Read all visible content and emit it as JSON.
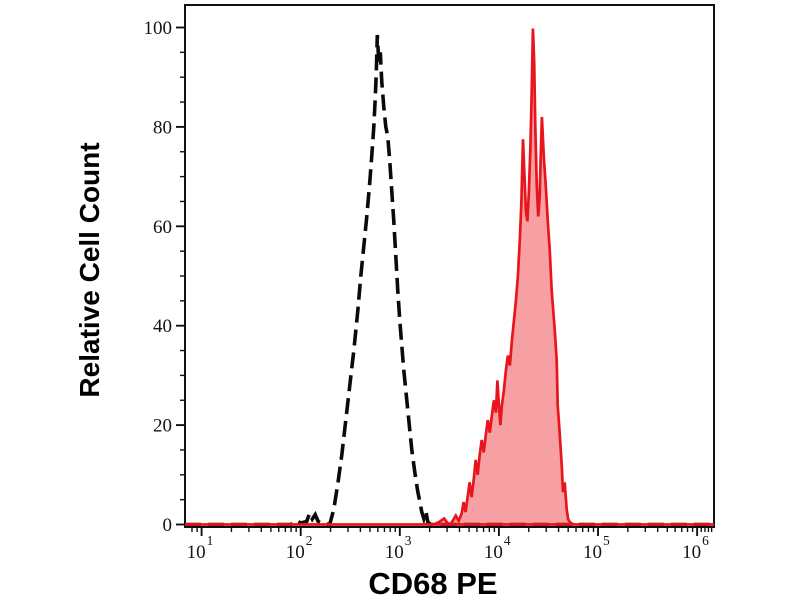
{
  "figure": {
    "kind": "flow-cytometry-histogram",
    "background": "#ffffff",
    "frame_color": "#111111"
  },
  "chart_data": {
    "type": "area",
    "title": "",
    "xlabel": "CD68 PE",
    "ylabel": "Relative Cell Count",
    "x_scale": "log10",
    "x_range": [
      6.8,
      1480000
    ],
    "y_range": [
      0,
      104.5
    ],
    "grid": false,
    "legend": null,
    "x_ticks": [
      {
        "base": "10",
        "exp": "1",
        "value": 10
      },
      {
        "base": "10",
        "exp": "2",
        "value": 100
      },
      {
        "base": "10",
        "exp": "3",
        "value": 1000
      },
      {
        "base": "10",
        "exp": "4",
        "value": 10000
      },
      {
        "base": "10",
        "exp": "5",
        "value": 100000
      },
      {
        "base": "10",
        "exp": "6",
        "value": 1000000
      }
    ],
    "x_minor_ticks": [
      8,
      9,
      20,
      30,
      40,
      50,
      60,
      70,
      80,
      90,
      200,
      300,
      400,
      500,
      600,
      700,
      800,
      900,
      2000,
      3000,
      4000,
      5000,
      6000,
      7000,
      8000,
      9000,
      20000,
      30000,
      40000,
      50000,
      60000,
      70000,
      80000,
      90000,
      200000,
      300000,
      400000,
      500000,
      600000,
      700000,
      800000,
      900000,
      1100000,
      1200000,
      1300000,
      1400000
    ],
    "y_ticks": [
      {
        "label": "0",
        "value": 0
      },
      {
        "label": "20",
        "value": 20
      },
      {
        "label": "40",
        "value": 40
      },
      {
        "label": "60",
        "value": 60
      },
      {
        "label": "80",
        "value": 80
      },
      {
        "label": "100",
        "value": 100
      }
    ],
    "y_minor_ticks": [
      5,
      10,
      15,
      25,
      30,
      35,
      45,
      50,
      55,
      65,
      70,
      75,
      85,
      90,
      95
    ],
    "series": [
      {
        "name": "isotype-control",
        "style": "dashed",
        "color": "#0a0a0a",
        "fill": "none",
        "stroke_width": 3.6,
        "dash": [
          16,
          7
        ],
        "peak": {
          "x": 593,
          "y": 98.5
        },
        "points": [
          [
            6.8,
            0
          ],
          [
            80,
            0
          ],
          [
            90,
            0.8
          ],
          [
            100,
            0.3
          ],
          [
            115,
            0.6
          ],
          [
            123,
            2.3
          ],
          [
            131,
            1.1
          ],
          [
            140,
            2
          ],
          [
            150,
            0.6
          ],
          [
            165,
            0.2
          ],
          [
            196,
            0
          ],
          [
            215,
            3
          ],
          [
            236,
            8
          ],
          [
            260,
            14
          ],
          [
            285,
            21
          ],
          [
            313,
            28
          ],
          [
            343,
            35
          ],
          [
            377,
            43
          ],
          [
            404,
            50
          ],
          [
            433,
            56
          ],
          [
            464,
            62
          ],
          [
            498,
            69
          ],
          [
            521,
            74
          ],
          [
            546,
            80
          ],
          [
            566,
            86
          ],
          [
            579,
            91
          ],
          [
            593,
            98.5
          ],
          [
            614,
            93
          ],
          [
            636,
            95
          ],
          [
            658,
            89
          ],
          [
            689,
            84
          ],
          [
            722,
            80
          ],
          [
            757,
            78
          ],
          [
            793,
            73
          ],
          [
            830,
            67
          ],
          [
            870,
            61
          ],
          [
            912,
            54
          ],
          [
            955,
            47
          ],
          [
            1000,
            41
          ],
          [
            1048,
            36
          ],
          [
            1097,
            31
          ],
          [
            1150,
            27
          ],
          [
            1205,
            23
          ],
          [
            1262,
            19
          ],
          [
            1322,
            15
          ],
          [
            1385,
            12
          ],
          [
            1452,
            9
          ],
          [
            1521,
            6.5
          ],
          [
            1593,
            4.5
          ],
          [
            1668,
            2.5
          ],
          [
            1747,
            1.2
          ],
          [
            1831,
            2.8
          ],
          [
            1918,
            0.5
          ],
          [
            2056,
            0
          ],
          [
            1480000,
            0
          ]
        ]
      },
      {
        "name": "cd68-pe",
        "style": "solid",
        "color": "#e8151d",
        "fill": "#ed1c24",
        "fill_opacity": 0.42,
        "stroke_width": 2.7,
        "dash": null,
        "peak": {
          "x": 22030,
          "y": 99.8
        },
        "points": [
          [
            6.8,
            0
          ],
          [
            2200,
            0
          ],
          [
            2500,
            0.5
          ],
          [
            2800,
            1.2
          ],
          [
            3000,
            0.4
          ],
          [
            3210,
            0
          ],
          [
            3430,
            0.8
          ],
          [
            3670,
            1.8
          ],
          [
            3930,
            0.7
          ],
          [
            4200,
            2.2
          ],
          [
            4400,
            4.5
          ],
          [
            4600,
            2.5
          ],
          [
            4830,
            5.5
          ],
          [
            5060,
            8.5
          ],
          [
            5300,
            5.5
          ],
          [
            5560,
            9
          ],
          [
            5830,
            13
          ],
          [
            6110,
            10
          ],
          [
            6400,
            14
          ],
          [
            6710,
            17
          ],
          [
            7030,
            14.5
          ],
          [
            7370,
            18
          ],
          [
            7730,
            21
          ],
          [
            8100,
            18.5
          ],
          [
            8490,
            22
          ],
          [
            8900,
            25
          ],
          [
            9330,
            22.5
          ],
          [
            9660,
            29
          ],
          [
            10000,
            24
          ],
          [
            10350,
            20
          ],
          [
            10710,
            24
          ],
          [
            11220,
            27
          ],
          [
            11750,
            31
          ],
          [
            12320,
            34
          ],
          [
            12910,
            32
          ],
          [
            13530,
            37
          ],
          [
            14170,
            41
          ],
          [
            14850,
            45
          ],
          [
            15560,
            50
          ],
          [
            16310,
            58
          ],
          [
            16880,
            65
          ],
          [
            17480,
            77.5
          ],
          [
            18100,
            70
          ],
          [
            18730,
            63
          ],
          [
            19390,
            61
          ],
          [
            20080,
            67
          ],
          [
            20790,
            76
          ],
          [
            21370,
            86
          ],
          [
            22030,
            99.8
          ],
          [
            22700,
            93
          ],
          [
            23300,
            80
          ],
          [
            24100,
            68
          ],
          [
            24900,
            62
          ],
          [
            25800,
            66
          ],
          [
            26400,
            74
          ],
          [
            27170,
            82
          ],
          [
            28400,
            74
          ],
          [
            29700,
            68
          ],
          [
            31100,
            61
          ],
          [
            32600,
            55
          ],
          [
            34100,
            47
          ],
          [
            36600,
            39
          ],
          [
            38300,
            33
          ],
          [
            39200,
            24
          ],
          [
            41100,
            18
          ],
          [
            43000,
            12
          ],
          [
            44300,
            6.5
          ],
          [
            46100,
            8.5
          ],
          [
            48300,
            3
          ],
          [
            50000,
            1
          ],
          [
            53000,
            0.3
          ],
          [
            57700,
            0
          ],
          [
            1480000,
            0
          ]
        ]
      }
    ]
  }
}
